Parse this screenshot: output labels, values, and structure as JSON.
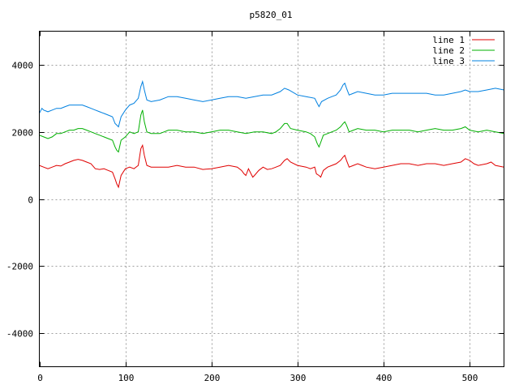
{
  "chart_data": {
    "type": "line",
    "title": "p5820_01",
    "xlabel": "",
    "ylabel": "",
    "xlim": [
      0,
      540
    ],
    "ylim": [
      -5000,
      5000
    ],
    "xticks": [
      0,
      100,
      200,
      300,
      400,
      500
    ],
    "yticks": [
      -4000,
      -2000,
      0,
      2000,
      4000
    ],
    "grid": true,
    "legend_position": "top-right",
    "series": [
      {
        "name": "line 1",
        "color": "#e00000",
        "points": [
          [
            0,
            1000
          ],
          [
            5,
            950
          ],
          [
            10,
            900
          ],
          [
            15,
            950
          ],
          [
            20,
            1000
          ],
          [
            25,
            980
          ],
          [
            30,
            1050
          ],
          [
            35,
            1100
          ],
          [
            40,
            1150
          ],
          [
            45,
            1180
          ],
          [
            50,
            1150
          ],
          [
            55,
            1100
          ],
          [
            60,
            1050
          ],
          [
            65,
            900
          ],
          [
            70,
            880
          ],
          [
            75,
            900
          ],
          [
            80,
            850
          ],
          [
            85,
            800
          ],
          [
            88,
            600
          ],
          [
            90,
            450
          ],
          [
            92,
            350
          ],
          [
            95,
            700
          ],
          [
            100,
            900
          ],
          [
            105,
            950
          ],
          [
            110,
            900
          ],
          [
            115,
            1000
          ],
          [
            118,
            1500
          ],
          [
            120,
            1600
          ],
          [
            122,
            1300
          ],
          [
            125,
            1000
          ],
          [
            130,
            950
          ],
          [
            140,
            950
          ],
          [
            150,
            950
          ],
          [
            160,
            1000
          ],
          [
            170,
            950
          ],
          [
            180,
            950
          ],
          [
            190,
            880
          ],
          [
            200,
            900
          ],
          [
            210,
            950
          ],
          [
            220,
            1000
          ],
          [
            230,
            950
          ],
          [
            235,
            850
          ],
          [
            238,
            750
          ],
          [
            240,
            700
          ],
          [
            243,
            900
          ],
          [
            245,
            800
          ],
          [
            248,
            650
          ],
          [
            250,
            700
          ],
          [
            255,
            850
          ],
          [
            260,
            950
          ],
          [
            265,
            880
          ],
          [
            270,
            900
          ],
          [
            275,
            950
          ],
          [
            280,
            1000
          ],
          [
            285,
            1150
          ],
          [
            288,
            1200
          ],
          [
            292,
            1100
          ],
          [
            300,
            1000
          ],
          [
            310,
            950
          ],
          [
            315,
            900
          ],
          [
            320,
            950
          ],
          [
            322,
            750
          ],
          [
            325,
            700
          ],
          [
            327,
            650
          ],
          [
            330,
            850
          ],
          [
            335,
            950
          ],
          [
            340,
            1000
          ],
          [
            345,
            1050
          ],
          [
            350,
            1150
          ],
          [
            353,
            1250
          ],
          [
            355,
            1300
          ],
          [
            357,
            1150
          ],
          [
            360,
            950
          ],
          [
            365,
            1000
          ],
          [
            370,
            1050
          ],
          [
            375,
            1000
          ],
          [
            380,
            950
          ],
          [
            390,
            900
          ],
          [
            400,
            950
          ],
          [
            410,
            1000
          ],
          [
            420,
            1050
          ],
          [
            430,
            1050
          ],
          [
            440,
            1000
          ],
          [
            450,
            1050
          ],
          [
            460,
            1050
          ],
          [
            470,
            1000
          ],
          [
            480,
            1050
          ],
          [
            490,
            1100
          ],
          [
            495,
            1200
          ],
          [
            500,
            1150
          ],
          [
            505,
            1050
          ],
          [
            510,
            1000
          ],
          [
            520,
            1050
          ],
          [
            525,
            1100
          ],
          [
            530,
            1000
          ],
          [
            540,
            950
          ]
        ]
      },
      {
        "name": "line 2",
        "color": "#00b000",
        "points": [
          [
            0,
            1900
          ],
          [
            5,
            1850
          ],
          [
            10,
            1800
          ],
          [
            15,
            1850
          ],
          [
            20,
            1950
          ],
          [
            25,
            1950
          ],
          [
            30,
            2000
          ],
          [
            35,
            2050
          ],
          [
            40,
            2050
          ],
          [
            45,
            2100
          ],
          [
            50,
            2100
          ],
          [
            55,
            2050
          ],
          [
            60,
            2000
          ],
          [
            65,
            1950
          ],
          [
            70,
            1900
          ],
          [
            75,
            1850
          ],
          [
            80,
            1800
          ],
          [
            85,
            1750
          ],
          [
            88,
            1550
          ],
          [
            90,
            1450
          ],
          [
            92,
            1400
          ],
          [
            95,
            1750
          ],
          [
            100,
            1850
          ],
          [
            105,
            2000
          ],
          [
            110,
            1950
          ],
          [
            115,
            2000
          ],
          [
            118,
            2500
          ],
          [
            120,
            2650
          ],
          [
            122,
            2300
          ],
          [
            125,
            2000
          ],
          [
            130,
            1950
          ],
          [
            140,
            1950
          ],
          [
            150,
            2050
          ],
          [
            160,
            2050
          ],
          [
            170,
            2000
          ],
          [
            180,
            2000
          ],
          [
            190,
            1950
          ],
          [
            200,
            2000
          ],
          [
            210,
            2050
          ],
          [
            220,
            2050
          ],
          [
            230,
            2000
          ],
          [
            240,
            1950
          ],
          [
            250,
            2000
          ],
          [
            260,
            2000
          ],
          [
            270,
            1950
          ],
          [
            275,
            2000
          ],
          [
            280,
            2100
          ],
          [
            285,
            2250
          ],
          [
            288,
            2250
          ],
          [
            292,
            2100
          ],
          [
            300,
            2050
          ],
          [
            310,
            2000
          ],
          [
            315,
            1950
          ],
          [
            320,
            1850
          ],
          [
            323,
            1650
          ],
          [
            325,
            1550
          ],
          [
            328,
            1750
          ],
          [
            330,
            1900
          ],
          [
            335,
            1950
          ],
          [
            340,
            2000
          ],
          [
            345,
            2050
          ],
          [
            350,
            2150
          ],
          [
            353,
            2250
          ],
          [
            355,
            2300
          ],
          [
            357,
            2200
          ],
          [
            360,
            2000
          ],
          [
            365,
            2050
          ],
          [
            370,
            2100
          ],
          [
            380,
            2050
          ],
          [
            390,
            2050
          ],
          [
            400,
            2000
          ],
          [
            410,
            2050
          ],
          [
            420,
            2050
          ],
          [
            430,
            2050
          ],
          [
            440,
            2000
          ],
          [
            450,
            2050
          ],
          [
            460,
            2100
          ],
          [
            470,
            2050
          ],
          [
            480,
            2050
          ],
          [
            490,
            2100
          ],
          [
            495,
            2150
          ],
          [
            500,
            2050
          ],
          [
            510,
            2000
          ],
          [
            520,
            2050
          ],
          [
            530,
            2000
          ],
          [
            540,
            1950
          ]
        ]
      },
      {
        "name": "line 3",
        "color": "#0080e0",
        "points": [
          [
            0,
            2550
          ],
          [
            3,
            2700
          ],
          [
            5,
            2650
          ],
          [
            10,
            2600
          ],
          [
            15,
            2650
          ],
          [
            20,
            2700
          ],
          [
            25,
            2700
          ],
          [
            30,
            2750
          ],
          [
            35,
            2800
          ],
          [
            40,
            2800
          ],
          [
            45,
            2800
          ],
          [
            50,
            2800
          ],
          [
            55,
            2750
          ],
          [
            60,
            2700
          ],
          [
            65,
            2650
          ],
          [
            70,
            2600
          ],
          [
            75,
            2550
          ],
          [
            80,
            2500
          ],
          [
            85,
            2450
          ],
          [
            88,
            2250
          ],
          [
            90,
            2200
          ],
          [
            92,
            2150
          ],
          [
            95,
            2450
          ],
          [
            100,
            2650
          ],
          [
            105,
            2800
          ],
          [
            110,
            2850
          ],
          [
            115,
            3000
          ],
          [
            118,
            3350
          ],
          [
            120,
            3500
          ],
          [
            122,
            3250
          ],
          [
            125,
            2950
          ],
          [
            130,
            2900
          ],
          [
            140,
            2950
          ],
          [
            150,
            3050
          ],
          [
            160,
            3050
          ],
          [
            170,
            3000
          ],
          [
            180,
            2950
          ],
          [
            190,
            2900
          ],
          [
            200,
            2950
          ],
          [
            210,
            3000
          ],
          [
            220,
            3050
          ],
          [
            230,
            3050
          ],
          [
            240,
            3000
          ],
          [
            250,
            3050
          ],
          [
            260,
            3100
          ],
          [
            270,
            3100
          ],
          [
            280,
            3200
          ],
          [
            285,
            3300
          ],
          [
            290,
            3250
          ],
          [
            300,
            3100
          ],
          [
            310,
            3050
          ],
          [
            320,
            3000
          ],
          [
            323,
            2850
          ],
          [
            325,
            2750
          ],
          [
            328,
            2900
          ],
          [
            335,
            3000
          ],
          [
            340,
            3050
          ],
          [
            345,
            3100
          ],
          [
            350,
            3250
          ],
          [
            353,
            3400
          ],
          [
            355,
            3450
          ],
          [
            357,
            3300
          ],
          [
            360,
            3100
          ],
          [
            365,
            3150
          ],
          [
            370,
            3200
          ],
          [
            380,
            3150
          ],
          [
            390,
            3100
          ],
          [
            400,
            3100
          ],
          [
            410,
            3150
          ],
          [
            420,
            3150
          ],
          [
            430,
            3150
          ],
          [
            440,
            3150
          ],
          [
            450,
            3150
          ],
          [
            460,
            3100
          ],
          [
            470,
            3100
          ],
          [
            480,
            3150
          ],
          [
            490,
            3200
          ],
          [
            495,
            3250
          ],
          [
            500,
            3200
          ],
          [
            510,
            3200
          ],
          [
            520,
            3250
          ],
          [
            530,
            3300
          ],
          [
            540,
            3250
          ]
        ]
      }
    ]
  }
}
